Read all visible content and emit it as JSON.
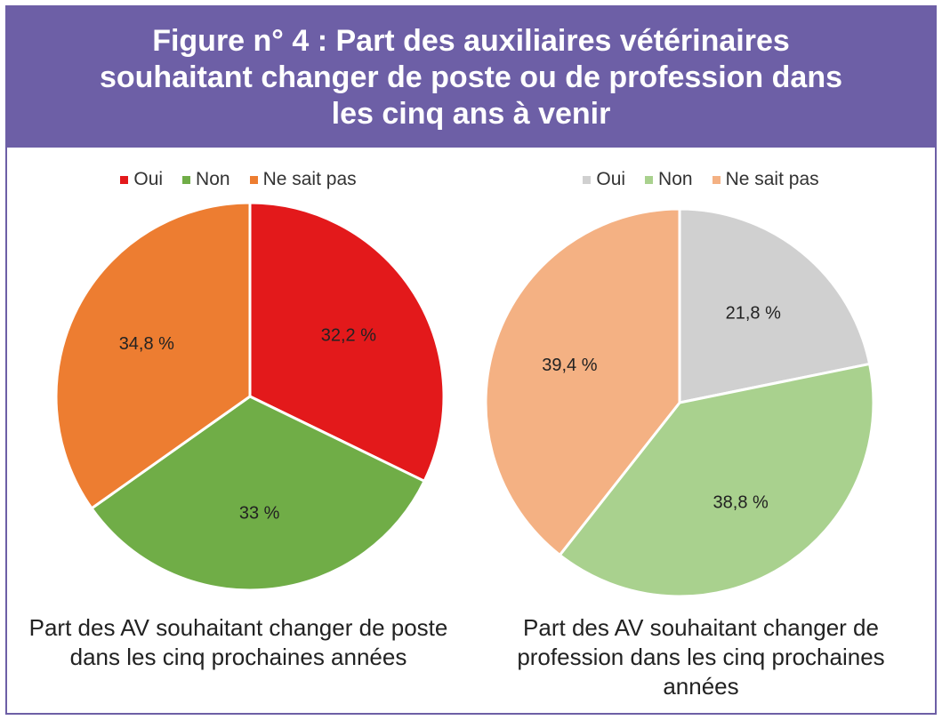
{
  "title": "Figure n° 4 : Part des auxiliaires vétérinaires souhaitant changer de poste ou de profession dans les cinq ans à venir",
  "chart_data": [
    {
      "type": "pie",
      "caption": "Part des AV souhaitant changer de poste dans les cinq prochaines années",
      "legend_position": "top",
      "slices": [
        {
          "name": "Oui",
          "value": 32.2,
          "label": "32,2 %",
          "color": "#e3191b"
        },
        {
          "name": "Non",
          "value": 33,
          "label": "33 %",
          "color": "#70ad47"
        },
        {
          "name": "Ne sait pas",
          "value": 34.8,
          "label": "34,8 %",
          "color": "#ed7d31"
        }
      ]
    },
    {
      "type": "pie",
      "caption": "Part des AV souhaitant changer de profession dans les cinq prochaines années",
      "legend_position": "top",
      "slices": [
        {
          "name": "Oui",
          "value": 21.8,
          "label": "21,8 %",
          "color": "#d0d0d0"
        },
        {
          "name": "Non",
          "value": 38.8,
          "label": "38,8 %",
          "color": "#a9d18e"
        },
        {
          "name": "Ne sait pas",
          "value": 39.4,
          "label": "39,4 %",
          "color": "#f4b183"
        }
      ]
    }
  ]
}
